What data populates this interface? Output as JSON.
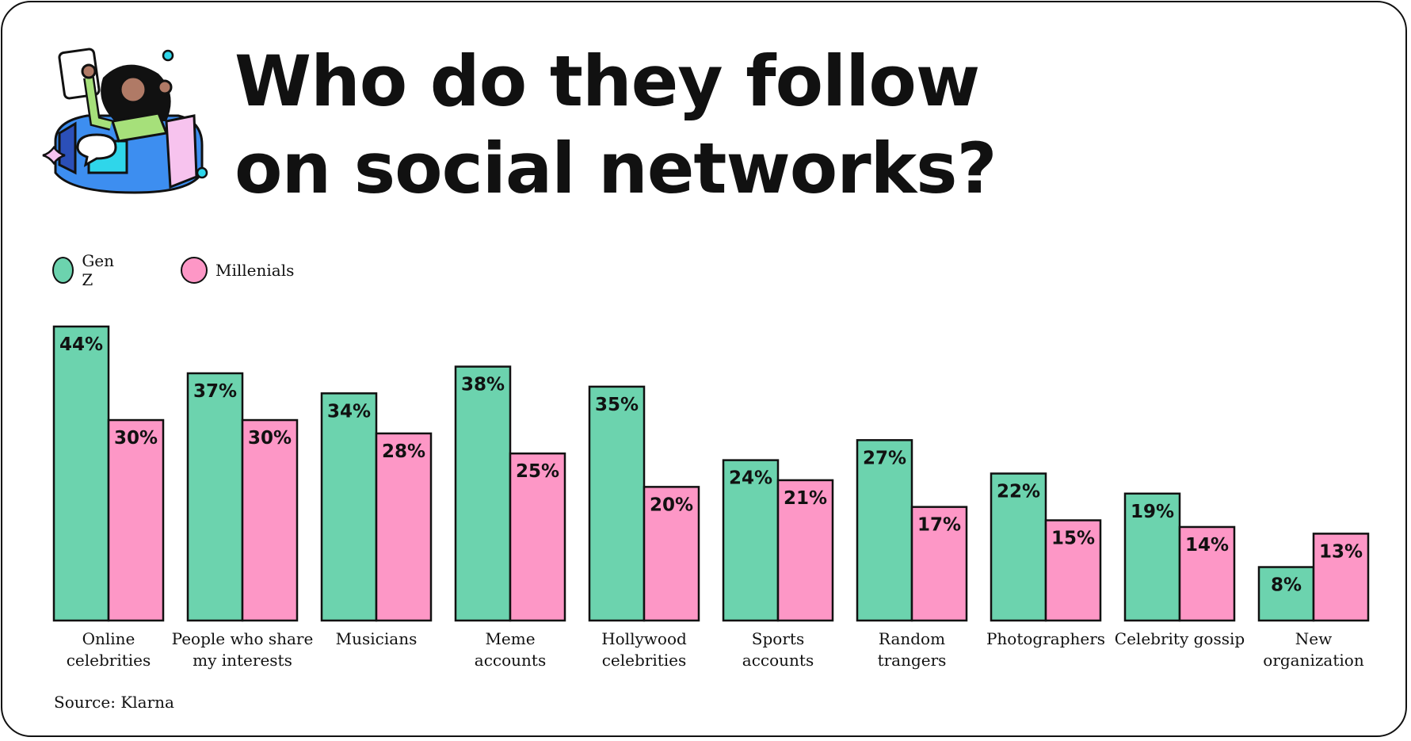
{
  "title": {
    "line1": "Who do they follow",
    "line2": "on social networks?"
  },
  "legend": {
    "genz": "Gen Z",
    "millenials": "Millenials"
  },
  "source": "Source: Klarna",
  "colors": {
    "genz": "#6cd3ae",
    "millenials": "#fd97c6",
    "outline": "#111111"
  },
  "chart_data": {
    "type": "bar",
    "title": "Who do they follow on social networks?",
    "categories": [
      [
        "Online",
        "celebrities"
      ],
      [
        "People who share",
        "my interests"
      ],
      [
        "Musicians"
      ],
      [
        "Meme",
        "accounts"
      ],
      [
        "Hollywood",
        "celebrities"
      ],
      [
        "Sports",
        "accounts"
      ],
      [
        "Random",
        "trangers"
      ],
      [
        "Photographers"
      ],
      [
        "Celebrity gossip"
      ],
      [
        "New",
        "organization"
      ]
    ],
    "series": [
      {
        "name": "Gen Z",
        "values": [
          44,
          37,
          34,
          38,
          35,
          24,
          27,
          22,
          19,
          8
        ]
      },
      {
        "name": "Millenials",
        "values": [
          30,
          30,
          28,
          25,
          20,
          21,
          17,
          15,
          14,
          13
        ]
      }
    ],
    "value_suffix": "%",
    "ylim": [
      0,
      44
    ],
    "grid": false,
    "legend_position": "top-left"
  }
}
